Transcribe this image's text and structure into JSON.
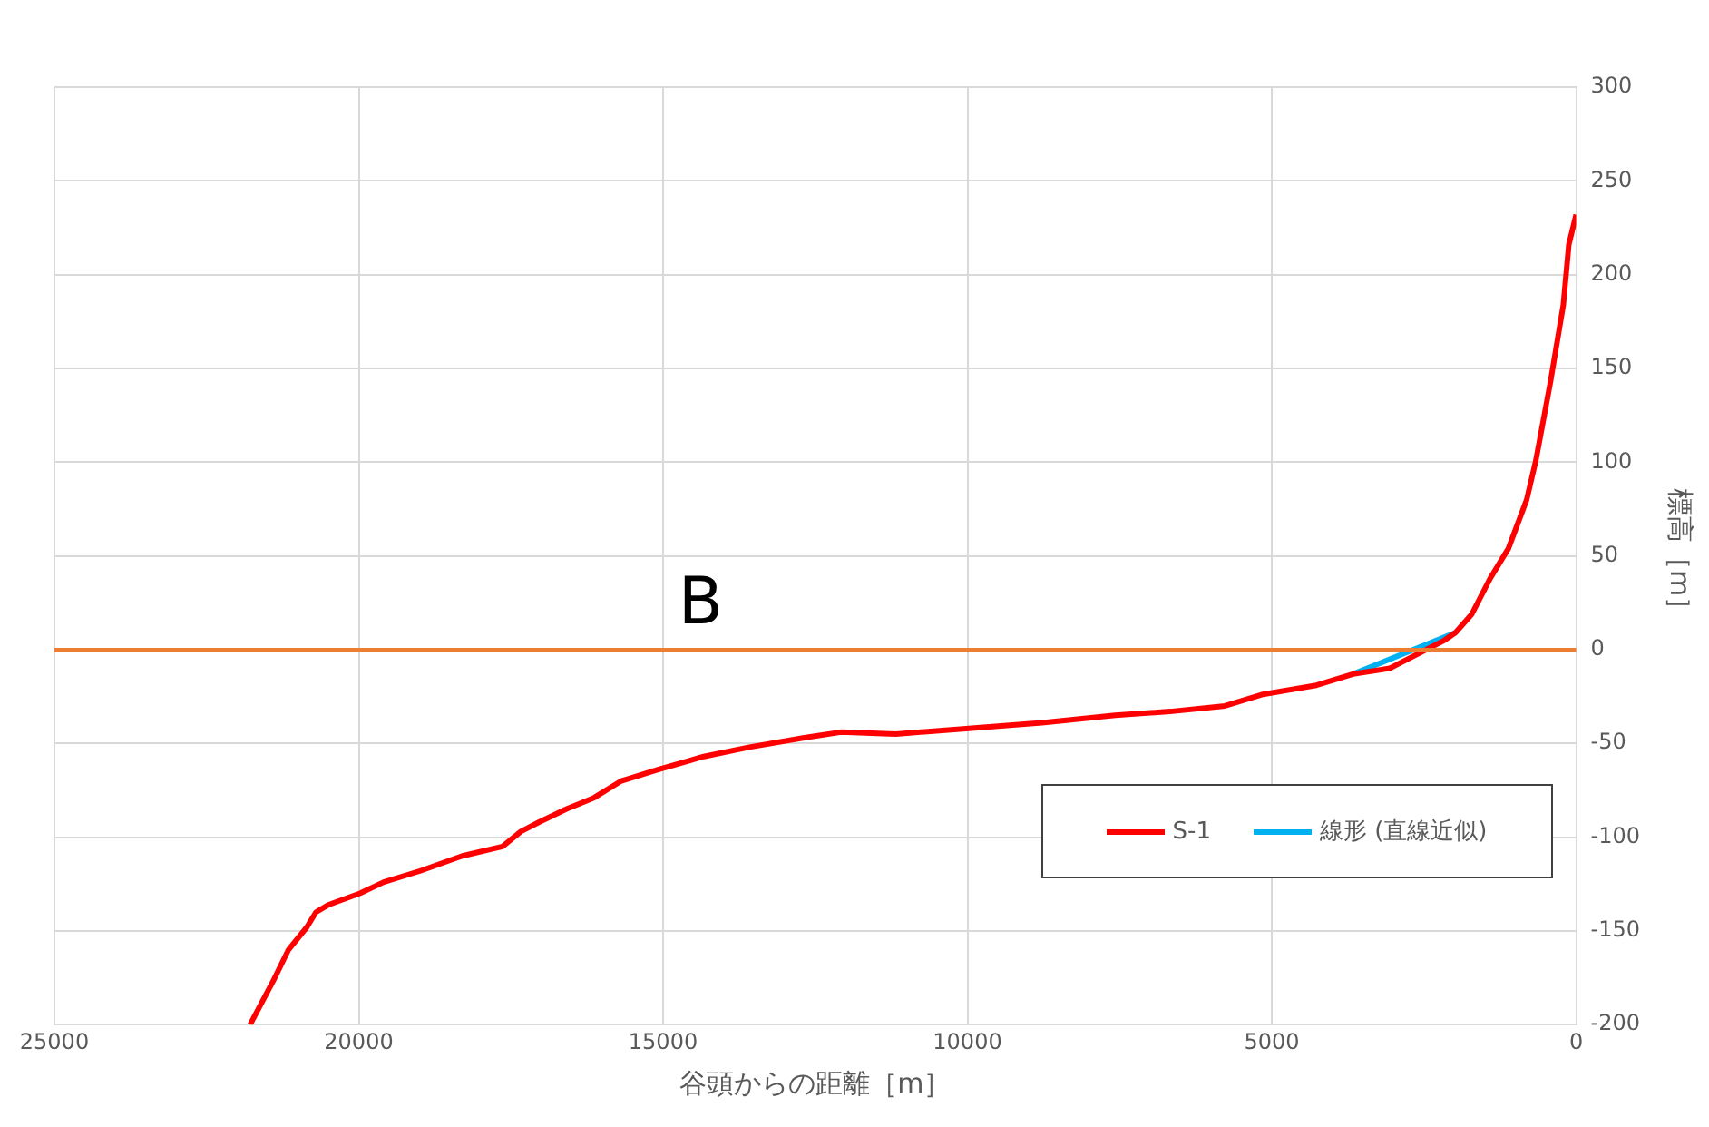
{
  "chart_data": {
    "type": "line",
    "xlabel": "谷頭からの距離［m］",
    "ylabel": "標高［m］",
    "xlim": [
      25000,
      0
    ],
    "xticks": [
      25000,
      20000,
      15000,
      10000,
      5000,
      0
    ],
    "ylim": [
      -200,
      300
    ],
    "yticks": [
      -200,
      -150,
      -100,
      -50,
      0,
      50,
      100,
      150,
      200,
      250,
      300
    ],
    "grid": true,
    "legend": "bottom right",
    "marker": "none",
    "line_style": "solid",
    "series": [
      {
        "name": "S-1",
        "color": "#ff0000",
        "x": [
          21785,
          21395,
          21154,
          20853,
          20703,
          20493,
          19982,
          19591,
          18990,
          18299,
          17638,
          17338,
          17037,
          16587,
          16136,
          15685,
          15084,
          14333,
          13582,
          12680,
          12079,
          11178,
          9976,
          8774,
          7572,
          6671,
          5769,
          5168,
          4267,
          3666,
          3065,
          2163,
          1983,
          1713,
          1412,
          1112,
          812,
          661,
          421,
          210,
          120,
          0
        ],
        "values": [
          -200,
          -176,
          -160,
          -148,
          -140,
          -136,
          -130,
          -124,
          -118,
          -110,
          -105,
          -97,
          -92,
          -85,
          -79,
          -70,
          -64,
          -57,
          -52,
          -47,
          -44,
          -45,
          -42,
          -39,
          -35,
          -33,
          -30,
          -24,
          -19,
          -13,
          -10,
          5,
          9,
          19,
          38,
          54,
          80,
          101,
          143,
          184,
          216,
          232
        ]
      },
      {
        "name": "線形 (直線近似)",
        "color": "#00b0f0",
        "x": [
          3666,
          1983
        ],
        "values": [
          -13,
          9
        ]
      }
    ],
    "ref_lines": [
      {
        "axis": "y",
        "value": 0,
        "label": "B",
        "color": "#ed7d31"
      }
    ]
  }
}
